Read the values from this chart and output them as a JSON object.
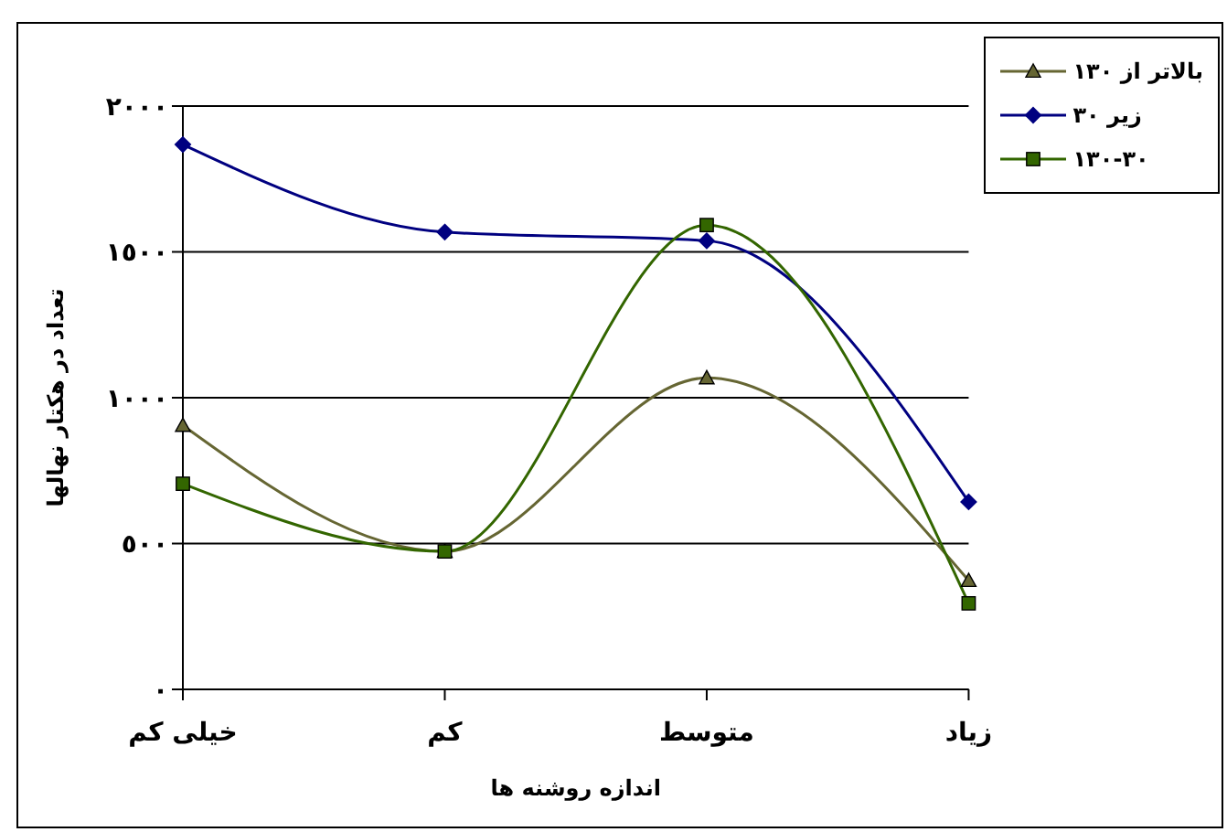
{
  "chart_data": {
    "type": "line",
    "xlabel": "اندازه روشنه ها",
    "ylabel": "تعداد در هکتار نهالها",
    "categories": [
      "خیلی کم",
      "کم",
      "متوسط",
      "زیاد"
    ],
    "series": [
      {
        "name": "بالاتر از ١٣٠",
        "color": "#666633",
        "marker": "triangle",
        "values": [
          905,
          473,
          1068,
          373
        ]
      },
      {
        "name": "زیر ٣٠",
        "color": "#000080",
        "marker": "diamond",
        "values": [
          1868,
          1568,
          1538,
          643
        ]
      },
      {
        "name": "٣٠-١٣٠",
        "color": "#336600",
        "marker": "square",
        "values": [
          705,
          473,
          1592,
          295
        ]
      }
    ],
    "ylim": [
      0,
      2000
    ],
    "yticks": [
      {
        "value": 0,
        "label": "٠"
      },
      {
        "value": 500,
        "label": "٥٠٠"
      },
      {
        "value": 1000,
        "label": "١٠٠٠"
      },
      {
        "value": 1500,
        "label": "١٥٠٠"
      },
      {
        "value": 2000,
        "label": "٢٠٠٠"
      }
    ],
    "grid": "y",
    "legend": "top right"
  }
}
